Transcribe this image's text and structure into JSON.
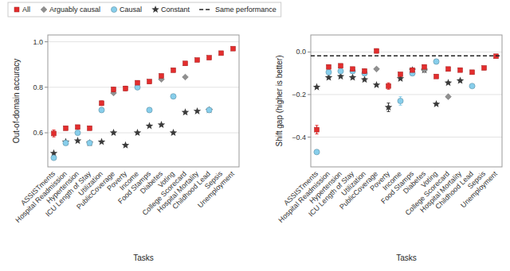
{
  "chart_data": [
    {
      "type": "scatter",
      "x_label": "Tasks",
      "y_label": "Out-of-domain accuracy",
      "categories": [
        "ASSISTments",
        "Hospital Readmission",
        "Hypertension",
        "ICU Length of Stay",
        "Utilization",
        "PublicCoverage",
        "Poverty",
        "Income",
        "Food Stamps",
        "Diabetes",
        "Voting",
        "College Scorecard",
        "Hospital Mortality",
        "Childhood Lead",
        "Sepsis",
        "Unemployment"
      ],
      "ylim": [
        0.45,
        1.03
      ],
      "yticks": [
        0.6,
        0.8,
        {
          "value": 1.0,
          "label": "1.0"
        }
      ],
      "grid": true,
      "legend": "upper left",
      "series": [
        {
          "name": "All",
          "color": "#E32D2D",
          "marker": "square",
          "values": [
            0.597,
            0.62,
            0.625,
            0.62,
            0.73,
            0.79,
            0.795,
            0.82,
            0.825,
            0.85,
            0.875,
            0.905,
            0.92,
            0.93,
            0.95,
            0.97
          ],
          "errors": [
            0.015,
            0.008,
            0.008,
            0.008,
            0.01,
            0.01,
            0.01,
            0.008,
            0.008,
            0.008,
            0.008,
            0.008,
            0.006,
            0.006,
            0.005,
            0.005
          ]
        },
        {
          "name": "Arguably causal",
          "color": "#909090",
          "marker": "diamond",
          "values": [
            null,
            null,
            null,
            null,
            null,
            0.775,
            null,
            null,
            null,
            0.835,
            null,
            0.845,
            null,
            null,
            null,
            null
          ]
        },
        {
          "name": "Causal",
          "color": "#87CEEB",
          "marker": "circle",
          "values": [
            0.49,
            0.555,
            0.6,
            0.555,
            0.7,
            null,
            null,
            0.8,
            0.7,
            null,
            0.76,
            null,
            null,
            0.7,
            null,
            null
          ]
        },
        {
          "name": "Constant",
          "color": "#3a3a3a",
          "marker": "star",
          "values": [
            0.51,
            0.56,
            0.565,
            0.555,
            0.56,
            0.6,
            0.545,
            0.6,
            0.63,
            0.635,
            0.6,
            0.69,
            0.695,
            0.7,
            null,
            null
          ]
        }
      ]
    },
    {
      "type": "scatter",
      "x_label": "Tasks",
      "y_label": "Shift gap (higher is better)",
      "categories": [
        "ASSISTments",
        "Hospital Readmission",
        "Hypertension",
        "ICU Length of Stay",
        "Utilization",
        "PublicCoverage",
        "Poverty",
        "Income",
        "Food Stamps",
        "Diabetes",
        "Voting",
        "College Scorecard",
        "Hospital Mortality",
        "Childhood Lead",
        "Sepsis",
        "Unemployment"
      ],
      "ylim": [
        -0.54,
        0.08
      ],
      "yticks": [
        {
          "value": 0.0,
          "label": "0.0"
        },
        {
          "value": -0.2,
          "label": "−0.2"
        },
        {
          "value": -0.4,
          "label": "−0.4"
        }
      ],
      "grid": true,
      "hline": {
        "name": "Same performance",
        "value": -0.018,
        "color": "#222222",
        "line_style": "dashed"
      },
      "series": [
        {
          "name": "All",
          "color": "#E32D2D",
          "marker": "square",
          "values": [
            -0.365,
            -0.07,
            -0.065,
            -0.08,
            -0.09,
            0.005,
            -0.16,
            -0.105,
            -0.085,
            -0.07,
            -0.115,
            -0.08,
            -0.085,
            -0.095,
            -0.075,
            -0.02
          ],
          "errors": [
            0.02,
            0.008,
            0.008,
            0.008,
            0.01,
            0.01,
            0.015,
            0.008,
            0.008,
            0.008,
            0.008,
            0.008,
            0.008,
            0.008,
            0.008,
            0.005
          ]
        },
        {
          "name": "Arguably causal",
          "color": "#909090",
          "marker": "diamond",
          "values": [
            null,
            null,
            null,
            null,
            null,
            -0.08,
            null,
            null,
            null,
            -0.085,
            null,
            -0.21,
            null,
            null,
            null,
            null
          ]
        },
        {
          "name": "Causal",
          "color": "#87CEEB",
          "marker": "circle",
          "values": [
            -0.47,
            -0.095,
            -0.09,
            -0.09,
            -0.1,
            null,
            null,
            -0.23,
            -0.1,
            null,
            -0.045,
            null,
            null,
            -0.16,
            null,
            null
          ],
          "errors": [
            0.01,
            0.005,
            0.005,
            0.005,
            0.005,
            0.0,
            0.0,
            0.02,
            0.005,
            0.0,
            0.005,
            0.0,
            0.0,
            0.005,
            0.0,
            0.0
          ]
        },
        {
          "name": "Constant",
          "color": "#3a3a3a",
          "marker": "star",
          "values": [
            -0.165,
            -0.12,
            -0.115,
            -0.12,
            -0.13,
            -0.155,
            -0.26,
            -0.125,
            -0.085,
            -0.085,
            -0.245,
            -0.145,
            -0.135,
            null,
            null,
            null
          ],
          "errors": [
            0.005,
            0.005,
            0.005,
            0.005,
            0.005,
            0.005,
            0.02,
            0.005,
            0.005,
            0.005,
            0.005,
            0.005,
            0.005,
            0.0,
            0.0,
            0.0
          ]
        }
      ]
    }
  ]
}
